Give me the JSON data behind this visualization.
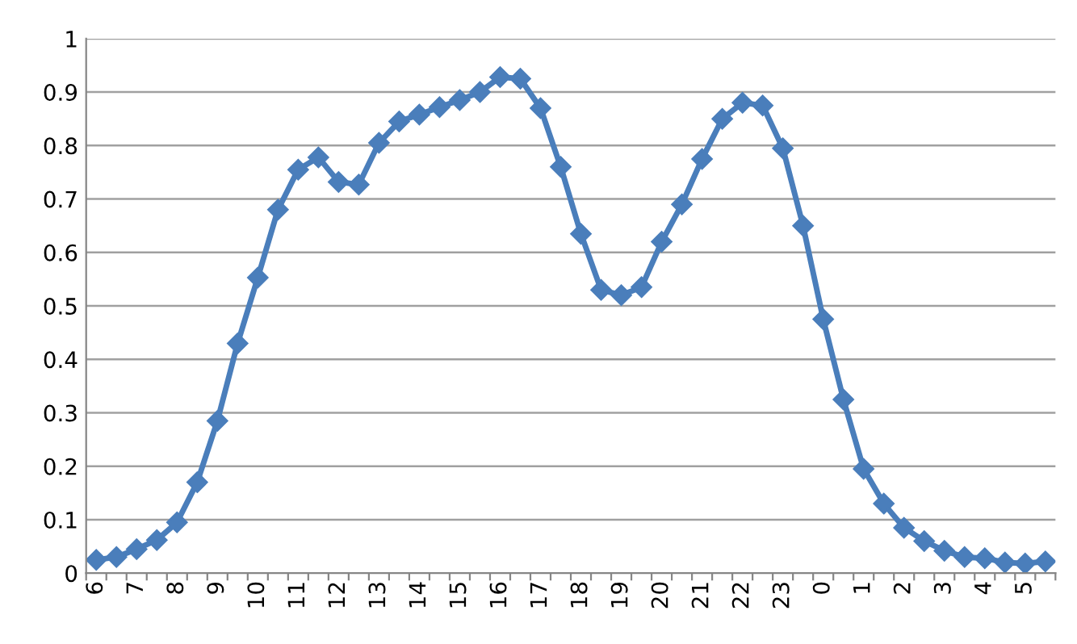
{
  "chart_data": {
    "type": "line",
    "categories": [
      "6",
      null,
      "7",
      null,
      "8",
      null,
      "9",
      null,
      "10",
      null,
      "11",
      null,
      "12",
      null,
      "13",
      null,
      "14",
      null,
      "15",
      null,
      "16",
      null,
      "17",
      null,
      "18",
      null,
      "19",
      null,
      "20",
      null,
      "21",
      null,
      "22",
      null,
      "23",
      null,
      "0",
      null,
      "1",
      null,
      "2",
      null,
      "3",
      null,
      "4",
      null,
      "5",
      null
    ],
    "series": [
      {
        "color": "#4a7ebb",
        "values": [
          0.025,
          0.03,
          0.045,
          0.062,
          0.095,
          0.17,
          0.285,
          0.43,
          0.553,
          0.68,
          0.755,
          0.778,
          0.732,
          0.727,
          0.805,
          0.845,
          0.858,
          0.872,
          0.885,
          0.9,
          0.928,
          0.925,
          0.87,
          0.76,
          0.635,
          0.53,
          0.52,
          0.535,
          0.62,
          0.69,
          0.775,
          0.85,
          0.88,
          0.875,
          0.795,
          0.65,
          0.475,
          0.325,
          0.195,
          0.13,
          0.085,
          0.06,
          0.042,
          0.03,
          0.028,
          0.02,
          0.018,
          0.022
        ]
      }
    ],
    "ylim": [
      0,
      1
    ],
    "yticks": [
      0,
      0.1,
      0.2,
      0.3,
      0.4,
      0.5,
      0.6,
      0.7,
      0.8,
      0.9,
      1
    ],
    "grid": "y",
    "marker": "diamond",
    "line_style": "solid"
  }
}
